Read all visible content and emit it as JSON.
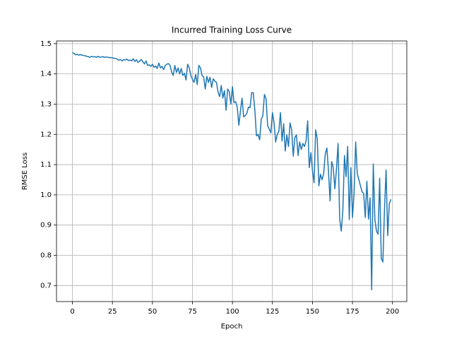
{
  "chart_data": {
    "type": "line",
    "title": "Incurred Training Loss Curve",
    "x_label": "Epoch",
    "y_label": "RMSE Loss",
    "color": "#1f77b4",
    "grid": true,
    "xlim": [
      -9.95,
      208.95
    ],
    "ylim": [
      0.647,
      1.509
    ],
    "xticks": [
      0,
      25,
      50,
      75,
      100,
      125,
      150,
      175,
      200
    ],
    "yticks": [
      0.7,
      0.8,
      0.9,
      {
        "value": 1,
        "label": "1.0"
      },
      1.1,
      1.2,
      1.3,
      1.4,
      1.5
    ],
    "x": [
      0,
      1,
      2,
      3,
      4,
      5,
      6,
      7,
      8,
      9,
      10,
      11,
      12,
      13,
      14,
      15,
      16,
      17,
      18,
      19,
      20,
      21,
      22,
      23,
      24,
      25,
      26,
      27,
      28,
      29,
      30,
      31,
      32,
      33,
      34,
      35,
      36,
      37,
      38,
      39,
      40,
      41,
      42,
      43,
      44,
      45,
      46,
      47,
      48,
      49,
      50,
      51,
      52,
      53,
      54,
      55,
      56,
      57,
      58,
      59,
      60,
      61,
      62,
      63,
      64,
      65,
      66,
      67,
      68,
      69,
      70,
      71,
      72,
      73,
      74,
      75,
      76,
      77,
      78,
      79,
      80,
      81,
      82,
      83,
      84,
      85,
      86,
      87,
      88,
      89,
      90,
      91,
      92,
      93,
      94,
      95,
      96,
      97,
      98,
      99,
      100,
      101,
      102,
      103,
      104,
      105,
      106,
      107,
      108,
      109,
      110,
      111,
      112,
      113,
      114,
      115,
      116,
      117,
      118,
      119,
      120,
      121,
      122,
      123,
      124,
      125,
      126,
      127,
      128,
      129,
      130,
      131,
      132,
      133,
      134,
      135,
      136,
      137,
      138,
      139,
      140,
      141,
      142,
      143,
      144,
      145,
      146,
      147,
      148,
      149,
      150,
      151,
      152,
      153,
      154,
      155,
      156,
      157,
      158,
      159,
      160,
      161,
      162,
      163,
      164,
      165,
      166,
      167,
      168,
      169,
      170,
      171,
      172,
      173,
      174,
      175,
      176,
      177,
      178,
      179,
      180,
      181,
      182,
      183,
      184,
      185,
      186,
      187,
      188,
      189,
      190,
      191,
      192,
      193,
      194,
      195,
      196,
      197,
      198,
      199
    ],
    "values": [
      1.47,
      1.468,
      1.463,
      1.465,
      1.462,
      1.464,
      1.462,
      1.461,
      1.46,
      1.458,
      1.457,
      1.455,
      1.458,
      1.456,
      1.457,
      1.455,
      1.458,
      1.455,
      1.456,
      1.457,
      1.455,
      1.456,
      1.455,
      1.454,
      1.454,
      1.453,
      1.452,
      1.451,
      1.449,
      1.445,
      1.448,
      1.443,
      1.447,
      1.446,
      1.449,
      1.444,
      1.446,
      1.443,
      1.45,
      1.441,
      1.447,
      1.438,
      1.442,
      1.448,
      1.44,
      1.433,
      1.443,
      1.428,
      1.43,
      1.425,
      1.432,
      1.422,
      1.426,
      1.418,
      1.436,
      1.42,
      1.425,
      1.414,
      1.428,
      1.432,
      1.434,
      1.428,
      1.406,
      1.395,
      1.428,
      1.405,
      1.42,
      1.4,
      1.418,
      1.395,
      1.402,
      1.38,
      1.432,
      1.42,
      1.395,
      1.382,
      1.372,
      1.398,
      1.365,
      1.428,
      1.42,
      1.395,
      1.39,
      1.35,
      1.392,
      1.372,
      1.389,
      1.355,
      1.384,
      1.376,
      1.372,
      1.34,
      1.325,
      1.362,
      1.32,
      1.345,
      1.28,
      1.35,
      1.342,
      1.3,
      1.358,
      1.305,
      1.308,
      1.29,
      1.23,
      1.278,
      1.32,
      1.258,
      1.262,
      1.27,
      1.29,
      1.288,
      1.338,
      1.338,
      1.28,
      1.195,
      1.2,
      1.182,
      1.25,
      1.262,
      1.332,
      1.318,
      1.228,
      1.218,
      1.205,
      1.272,
      1.238,
      1.175,
      1.2,
      1.21,
      1.272,
      1.178,
      1.235,
      1.145,
      1.198,
      1.16,
      1.238,
      1.215,
      1.128,
      1.19,
      1.198,
      1.13,
      1.175,
      1.15,
      1.17,
      1.16,
      1.178,
      1.245,
      1.09,
      1.14,
      1.08,
      1.04,
      1.215,
      1.185,
      1.03,
      1.068,
      1.05,
      1.07,
      1.135,
      1.155,
      1.08,
      0.98,
      1.11,
      1.09,
      1.02,
      1.085,
      1.17,
      0.92,
      0.88,
      0.95,
      1.13,
      1.06,
      1.16,
      0.918,
      1.09,
      0.925,
      1.005,
      1.175,
      1.07,
      1.05,
      1.03,
      1.01,
      1.005,
      0.925,
      1.045,
      0.92,
      0.99,
      0.686,
      1.102,
      0.92,
      0.88,
      0.87,
      1.055,
      0.79,
      0.778,
      0.95,
      1.082,
      0.865,
      0.97,
      0.985
    ]
  }
}
